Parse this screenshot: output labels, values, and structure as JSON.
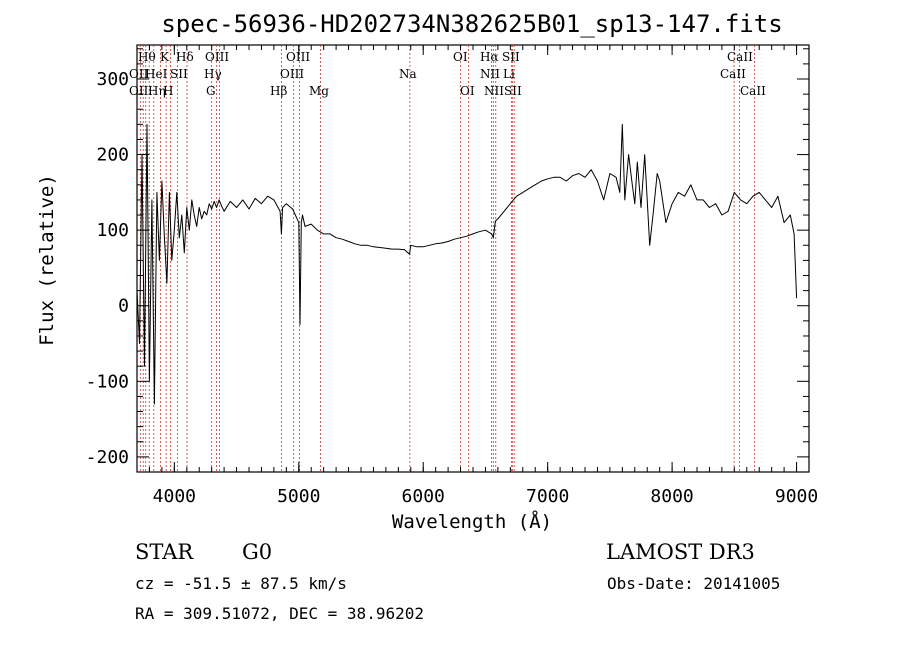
{
  "chart_data": {
    "type": "line",
    "title": "spec-56936-HD202734N382625B01_sp13-147.fits",
    "xlabel": "Wavelength (Å)",
    "ylabel": "Flux (relative)",
    "xlim": [
      3700,
      9100
    ],
    "ylim": [
      -220,
      345
    ],
    "x_ticks": [
      4000,
      5000,
      6000,
      7000,
      8000,
      9000
    ],
    "y_ticks": [
      -200,
      -100,
      0,
      100,
      200,
      300
    ],
    "grid": false,
    "series": [
      {
        "name": "flux",
        "x": [
          3700,
          3720,
          3740,
          3760,
          3780,
          3800,
          3820,
          3840,
          3860,
          3880,
          3900,
          3920,
          3940,
          3960,
          3980,
          4000,
          4020,
          4040,
          4060,
          4080,
          4100,
          4120,
          4140,
          4160,
          4180,
          4200,
          4220,
          4240,
          4260,
          4280,
          4300,
          4320,
          4340,
          4360,
          4380,
          4400,
          4450,
          4500,
          4550,
          4600,
          4650,
          4700,
          4750,
          4800,
          4850,
          4860,
          4870,
          4900,
          4950,
          5000,
          5010,
          5020,
          5030,
          5050,
          5100,
          5150,
          5200,
          5250,
          5300,
          5350,
          5400,
          5450,
          5500,
          5550,
          5600,
          5650,
          5700,
          5750,
          5800,
          5850,
          5890,
          5900,
          5950,
          6000,
          6050,
          6100,
          6150,
          6200,
          6250,
          6300,
          6350,
          6400,
          6450,
          6500,
          6550,
          6563,
          6580,
          6600,
          6650,
          6700,
          6750,
          6800,
          6850,
          6900,
          6950,
          7000,
          7050,
          7100,
          7150,
          7200,
          7250,
          7300,
          7350,
          7400,
          7450,
          7500,
          7550,
          7580,
          7600,
          7620,
          7650,
          7680,
          7700,
          7720,
          7750,
          7780,
          7800,
          7820,
          7850,
          7880,
          7900,
          7950,
          8000,
          8050,
          8100,
          8150,
          8200,
          8250,
          8300,
          8350,
          8400,
          8450,
          8500,
          8550,
          8600,
          8650,
          8700,
          8750,
          8800,
          8850,
          8900,
          8950,
          8980,
          9000
        ],
        "values": [
          20,
          -50,
          200,
          -80,
          240,
          -100,
          140,
          -130,
          150,
          60,
          165,
          90,
          30,
          150,
          60,
          100,
          150,
          90,
          120,
          70,
          130,
          100,
          140,
          120,
          105,
          130,
          115,
          125,
          120,
          135,
          128,
          138,
          130,
          140,
          132,
          125,
          138,
          130,
          140,
          128,
          142,
          135,
          145,
          140,
          125,
          95,
          130,
          135,
          128,
          110,
          -25,
          110,
          120,
          105,
          108,
          100,
          95,
          95,
          90,
          88,
          85,
          82,
          80,
          80,
          78,
          77,
          76,
          75,
          75,
          74,
          68,
          80,
          78,
          78,
          80,
          82,
          83,
          85,
          88,
          90,
          92,
          95,
          98,
          100,
          95,
          90,
          112,
          115,
          125,
          135,
          145,
          150,
          155,
          160,
          165,
          168,
          170,
          170,
          165,
          172,
          175,
          170,
          180,
          165,
          140,
          175,
          170,
          150,
          240,
          140,
          200,
          160,
          135,
          190,
          130,
          200,
          140,
          80,
          125,
          175,
          165,
          110,
          135,
          150,
          145,
          160,
          140,
          140,
          130,
          135,
          120,
          125,
          150,
          140,
          135,
          145,
          150,
          140,
          130,
          145,
          110,
          120,
          95,
          10
        ]
      }
    ],
    "spectral_lines": {
      "top_row": [
        "Hθ",
        "K",
        "Hδ",
        "OIII",
        "OIII",
        "Na",
        "OI",
        "Hα",
        "SII",
        "CaII"
      ],
      "second_row": [
        "OII",
        "HeI",
        "SII",
        "Hγ",
        "OIII",
        "NII",
        "Li",
        "CaII"
      ],
      "third_row": [
        "OII",
        "Hη",
        "H",
        "G",
        "Hβ",
        "Mg",
        "OI",
        "NII",
        "SII",
        "CaII"
      ]
    }
  },
  "info": {
    "object_class": "STAR",
    "subclass": "G0",
    "survey": "LAMOST DR3",
    "redshift": "cz = -51.5 ± 87.5 km/s",
    "obs_date": "Obs-Date: 20141005",
    "coords": "RA = 309.51072, DEC =  38.96202"
  }
}
